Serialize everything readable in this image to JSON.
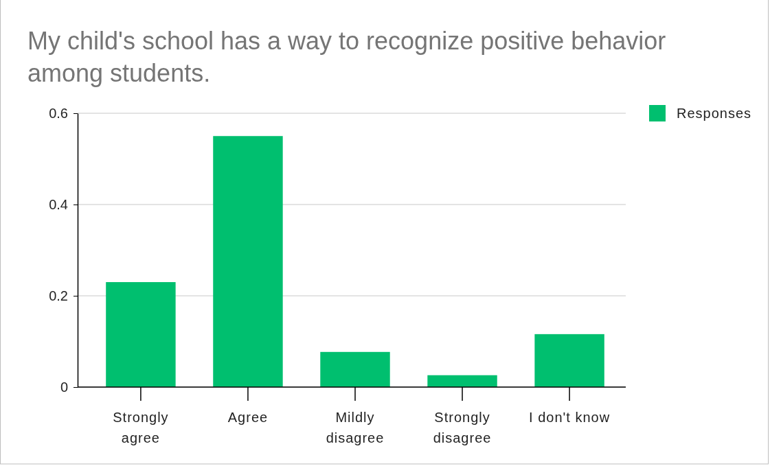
{
  "chart_data": {
    "type": "bar",
    "title": "My child's school has a way to recognize positive behavior among students.",
    "categories": [
      "Strongly agree",
      "Agree",
      "Mildly disagree",
      "Strongly disagree",
      "I don't know"
    ],
    "series": [
      {
        "name": "Responses",
        "color": "#00bf6f",
        "values": [
          0.23,
          0.55,
          0.077,
          0.026,
          0.116
        ]
      }
    ],
    "ylim": [
      0,
      0.6
    ],
    "yticks": [
      0,
      0.2,
      0.4,
      0.6
    ],
    "grid": "y",
    "legend": "top right"
  }
}
